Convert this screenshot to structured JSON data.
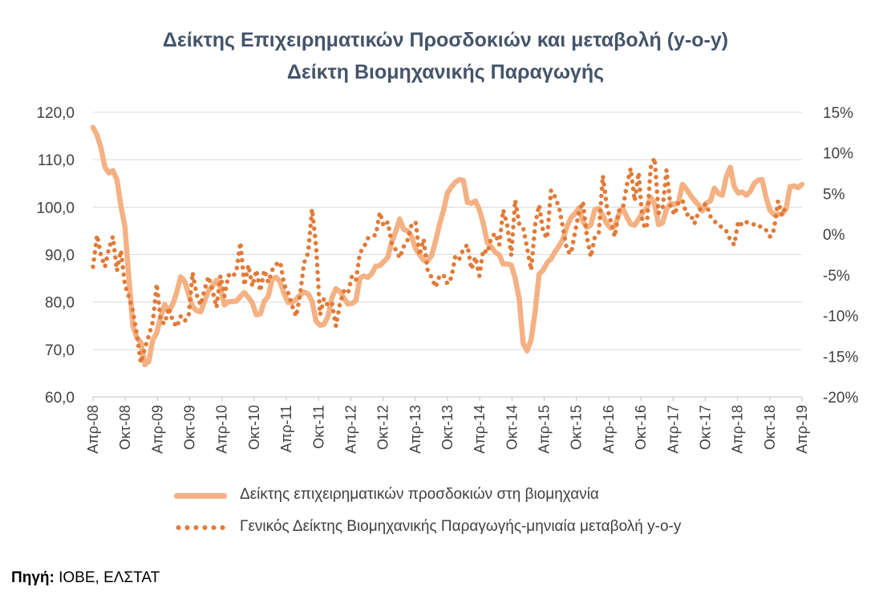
{
  "chart_data": {
    "type": "line",
    "title": "Δείκτης Επιχειρηματικών Προσδοκιών και μεταβολή (y-o-y)",
    "subtitle": "Δείκτη Βιομηχανικής Παραγωγής",
    "x_tick_labels": [
      "Απρ-08",
      "Οκτ-08",
      "Απρ-09",
      "Οκτ-09",
      "Απρ-10",
      "Οκτ-10",
      "Απρ-11",
      "Οκτ-11",
      "Απρ-12",
      "Οκτ-12",
      "Απρ-13",
      "Οκτ-13",
      "Απρ-14",
      "Οκτ-14",
      "Απρ-15",
      "Οκτ-15",
      "Απρ-16",
      "Οκτ-16",
      "Απρ-17",
      "Οκτ-17",
      "Απρ-18",
      "Οκτ-18",
      "Απρ-19"
    ],
    "x_start": "Απρ-08",
    "x_end": "Απρ-19",
    "y_left": {
      "ylim": [
        60,
        120
      ],
      "ticks": [
        "60,0",
        "70,0",
        "80,0",
        "90,0",
        "100,0",
        "110,0",
        "120,0"
      ]
    },
    "y_right": {
      "ylim": [
        -20,
        15
      ],
      "ticks": [
        "-20%",
        "-15%",
        "-10%",
        "-5%",
        "0%",
        "5%",
        "10%",
        "15%"
      ]
    },
    "grid": true,
    "legend_position": "bottom",
    "series": [
      {
        "name": "Δείκτης επιχειρηματικών προσδοκιών στη βιομηχανία",
        "axis": "left",
        "style": "solid",
        "color": "#f4b183",
        "values": [
          116.8,
          115.2,
          112.5,
          108.4,
          107.2,
          107.7,
          105.8,
          100.2,
          96,
          85,
          75,
          72.5,
          71.5,
          66.8,
          67.5,
          72,
          73.5,
          76.8,
          79.5,
          78,
          79.5,
          82,
          85.3,
          84.4,
          81.7,
          79,
          78.2,
          77.9,
          80.2,
          82.4,
          83.4,
          84.6,
          83.1,
          79.4,
          80.1,
          80.1,
          80.2,
          81.2,
          82,
          81,
          79.8,
          77.3,
          77.5,
          80.2,
          81.2,
          84.9,
          85.2,
          84.2,
          81.7,
          79.9,
          79.9,
          80.6,
          81.5,
          82.1,
          81.7,
          80.2,
          76,
          75.1,
          75.3,
          77,
          81,
          82.8,
          82.2,
          80.8,
          79.6,
          79.7,
          80.3,
          85,
          85.5,
          85.2,
          86,
          87.6,
          87.7,
          88.5,
          89.4,
          92.7,
          94.8,
          97.5,
          95.3,
          95,
          93.8,
          91.2,
          90,
          88.8,
          88.7,
          89.8,
          92.8,
          96.4,
          99.3,
          103,
          104.3,
          105.3,
          105.8,
          105.6,
          101,
          100.8,
          101.3,
          99.5,
          96.5,
          92.5,
          91.6,
          90.5,
          89.9,
          88,
          88,
          87.8,
          85,
          80.7,
          71.2,
          69.7,
          72.1,
          78,
          85.9,
          86.7,
          88.3,
          89.1,
          90.6,
          91.8,
          93.3,
          95.9,
          97.8,
          98.6,
          99.8,
          97,
          95.7,
          96.3,
          99.5,
          99.7,
          98.2,
          96.5,
          95.6,
          96,
          98.5,
          99.8,
          98,
          96.4,
          96.2,
          97.5,
          98.8,
          99.8,
          102.1,
          100.7,
          96.3,
          96.7,
          99.6,
          100.8,
          100.6,
          101,
          104.8,
          103.8,
          102.5,
          101.4,
          100.5,
          99.2,
          100.9,
          101.3,
          104,
          102.9,
          102.5,
          106.4,
          108.4,
          104.3,
          103,
          103.2,
          102.5,
          103.3,
          105,
          105.7,
          105.8,
          102,
          99.3,
          98.4,
          98.5,
          98.6,
          99.6,
          104.3,
          104.5,
          104.1,
          104.8
        ]
      },
      {
        "name": "Γενικός Δείκτης Βιομηχανικής Παραγωγής-μηνιαία μεταβολή y-o-y",
        "axis": "right",
        "style": "dotted",
        "color": "#e07b39",
        "values": [
          -4,
          -0.1,
          -2.6,
          -4,
          -1.7,
          -0.3,
          -4.5,
          -2,
          -6.2,
          -7.7,
          -9.4,
          -12.3,
          -15.8,
          -14,
          -12.5,
          -10.8,
          -6.1,
          -10.7,
          -11,
          -9,
          -10.6,
          -11.4,
          -10.1,
          -10.7,
          -10,
          -4.7,
          -7.4,
          -8.7,
          -6.8,
          -5.2,
          -6.9,
          -9,
          -5.1,
          -7.6,
          -5,
          -5.3,
          -4.5,
          -1,
          -6.3,
          -3.8,
          -6.4,
          -4.4,
          -7,
          -4.4,
          -5.9,
          -4.4,
          -3.7,
          -3.4,
          -6.2,
          -7.2,
          -8.8,
          -10.1,
          -7.4,
          -3.5,
          -2.3,
          3.1,
          -1.4,
          -9.9,
          -7.9,
          -8.8,
          -8.5,
          -11.3,
          -8.5,
          -7,
          -7.3,
          -5.2,
          -5.7,
          -2.3,
          -1.6,
          -0.5,
          -0.2,
          -0.1,
          2.7,
          1,
          1.5,
          -1.1,
          -1.9,
          -2.9,
          -1.5,
          -0.7,
          1.2,
          1.5,
          -2.6,
          -0.6,
          -4.4,
          -5.3,
          -6.5,
          -5.1,
          -5,
          -6.1,
          -5.3,
          -2.6,
          -3,
          -1.8,
          -1.3,
          -4.3,
          -2.8,
          -5.1,
          -1.9,
          -2.3,
          -0.4,
          0.1,
          -1.3,
          3,
          1.1,
          -2.6,
          4.2,
          1.3,
          0.8,
          -1.7,
          -4.4,
          1.2,
          3.6,
          0.3,
          -0.5,
          5.4,
          4.6,
          3.3,
          0.8,
          -2,
          -2.4,
          0.2,
          2.7,
          4,
          -0.3,
          -2.8,
          -0.3,
          0.2,
          7.2,
          3.4,
          1.6,
          -0.3,
          2.9,
          3.1,
          6,
          8.1,
          4.1,
          7.6,
          1.3,
          0.7,
          8.2,
          9.4,
          2.6,
          3.2,
          7.9,
          3.4,
          2.4,
          3.9,
          4.2,
          2.4,
          2.5,
          1.3,
          2.7,
          3.6,
          3.7,
          2.2,
          1.6,
          1.2,
          0.8,
          0.4,
          -0.7,
          -1.3,
          1.6,
          1.1,
          1.5,
          1.3,
          1.2,
          1.2,
          0.7,
          0.5,
          -0.3,
          0.6,
          4.1,
          2.3,
          3.6
        ]
      }
    ]
  },
  "source": {
    "label": "Πηγή:",
    "text": "IOBE, ΕΛΣΤΑΤ"
  }
}
